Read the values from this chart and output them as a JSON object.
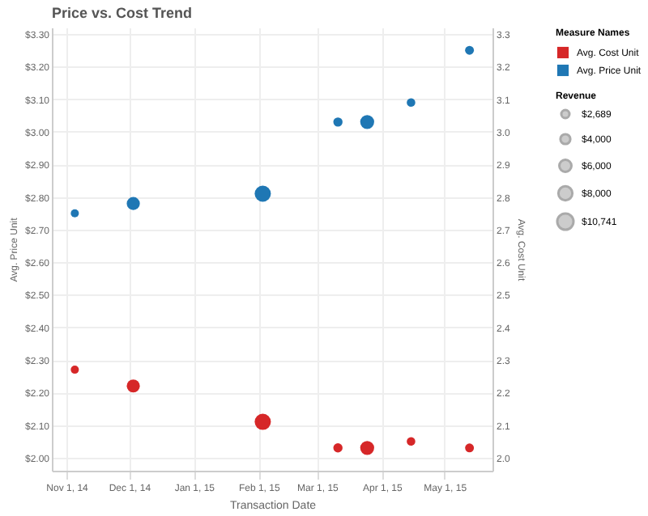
{
  "chart_data": {
    "type": "bubble",
    "title": "Price vs. Cost Trend",
    "xlabel": "Transaction Date",
    "ylabel": "Avg. Price Unit",
    "y2label": "Avg. Cost Unit",
    "legend_title": "Measure Names",
    "annotations": [
      "Revenue"
    ],
    "x": [
      "2014-11-05",
      "2014-12-03",
      "2015-02-03",
      "2015-03-11",
      "2015-03-25",
      "2015-04-15",
      "2015-05-13"
    ],
    "size_legend": [
      {
        "value": 2689,
        "label": "$2,689"
      },
      {
        "value": 4000,
        "label": "$4,000"
      },
      {
        "value": 6000,
        "label": "$6,000"
      },
      {
        "value": 8000,
        "label": "$8,000"
      },
      {
        "value": 10741,
        "label": "$10,741"
      }
    ],
    "series": [
      {
        "name": "Avg. Cost Unit",
        "color": "#d62728",
        "axis": "y2",
        "values": [
          2.27,
          2.22,
          2.11,
          2.03,
          2.03,
          2.05,
          2.03
        ],
        "sizes": [
          2700,
          7000,
          10741,
          3500,
          8000,
          3000,
          3200
        ]
      },
      {
        "name": "Avg. Price Unit",
        "color": "#1f77b4",
        "values": [
          2.75,
          2.78,
          2.81,
          3.03,
          3.03,
          3.09,
          3.25
        ],
        "sizes": [
          2700,
          7000,
          10741,
          3500,
          8000,
          3000,
          3200
        ]
      }
    ],
    "xlim": [
      "2014-10-25",
      "2015-05-24"
    ],
    "xticks": [
      {
        "value": "2014-11-01",
        "label": "Nov 1, 14"
      },
      {
        "value": "2014-12-01",
        "label": "Dec 1, 14"
      },
      {
        "value": "2015-01-01",
        "label": "Jan 1, 15"
      },
      {
        "value": "2015-02-01",
        "label": "Feb 1, 15"
      },
      {
        "value": "2015-03-01",
        "label": "Mar 1, 15"
      },
      {
        "value": "2015-04-01",
        "label": "Apr 1, 15"
      },
      {
        "value": "2015-05-01",
        "label": "May 1, 15"
      }
    ],
    "ylim": [
      1.96,
      3.32
    ],
    "yticks": [
      {
        "value": 2.0,
        "label": "$2.00"
      },
      {
        "value": 2.1,
        "label": "$2.10"
      },
      {
        "value": 2.2,
        "label": "$2.20"
      },
      {
        "value": 2.3,
        "label": "$2.30"
      },
      {
        "value": 2.4,
        "label": "$2.40"
      },
      {
        "value": 2.5,
        "label": "$2.50"
      },
      {
        "value": 2.6,
        "label": "$2.60"
      },
      {
        "value": 2.7,
        "label": "$2.70"
      },
      {
        "value": 2.8,
        "label": "$2.80"
      },
      {
        "value": 2.9,
        "label": "$2.90"
      },
      {
        "value": 3.0,
        "label": "$3.00"
      },
      {
        "value": 3.1,
        "label": "$3.10"
      },
      {
        "value": 3.2,
        "label": "$3.20"
      },
      {
        "value": 3.3,
        "label": "$3.30"
      }
    ],
    "y2lim": [
      1.96,
      3.32
    ],
    "y2ticks": [
      {
        "value": 2.0,
        "label": "2.0"
      },
      {
        "value": 2.1,
        "label": "2.1"
      },
      {
        "value": 2.2,
        "label": "2.2"
      },
      {
        "value": 2.3,
        "label": "2.3"
      },
      {
        "value": 2.4,
        "label": "2.4"
      },
      {
        "value": 2.5,
        "label": "2.5"
      },
      {
        "value": 2.6,
        "label": "2.6"
      },
      {
        "value": 2.7,
        "label": "2.7"
      },
      {
        "value": 2.8,
        "label": "2.8"
      },
      {
        "value": 2.9,
        "label": "2.9"
      },
      {
        "value": 3.0,
        "label": "3.0"
      },
      {
        "value": 3.1,
        "label": "3.1"
      },
      {
        "value": 3.2,
        "label": "3.2"
      },
      {
        "value": 3.3,
        "label": "3.3"
      }
    ],
    "grid": true,
    "legend": "top right",
    "marker": "circle"
  }
}
